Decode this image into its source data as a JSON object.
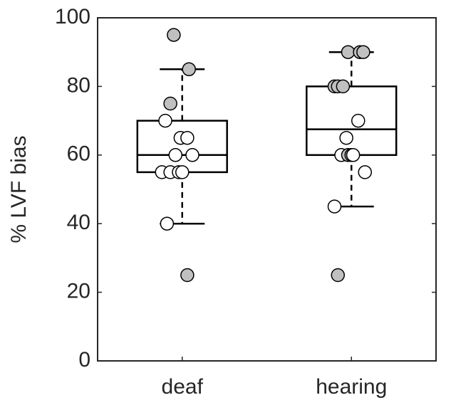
{
  "chart_data": {
    "type": "box",
    "ylabel": "% LVF bias",
    "categories": [
      "deaf",
      "hearing"
    ],
    "xlim": [
      0.5,
      2.5
    ],
    "ylim": [
      0,
      100
    ],
    "yticks": [
      0,
      20,
      40,
      60,
      80,
      100
    ],
    "box_width": 0.53,
    "groups": [
      {
        "min": 40,
        "q1": 55,
        "median": 60,
        "q3": 70,
        "max": 85,
        "points": {
          "x": [
            0.95,
            1.04,
            0.93,
            1.03,
            0.9,
            0.99,
            1.03,
            0.96,
            1.06,
            0.88,
            0.93,
            0.98,
            1.0,
            0.91
          ],
          "values": [
            95,
            85,
            75,
            25,
            70,
            65,
            65,
            60,
            60,
            55,
            55,
            55,
            55,
            40
          ],
          "colors": [
            "#c0c0c0",
            "#c0c0c0",
            "#c0c0c0",
            "#c0c0c0",
            "#ffffff",
            "#ffffff",
            "#ffffff",
            "#ffffff",
            "#ffffff",
            "#ffffff",
            "#ffffff",
            "#ffffff",
            "#ffffff",
            "#ffffff"
          ]
        }
      },
      {
        "min": 45,
        "q1": 60,
        "median": 67.5,
        "q3": 80,
        "max": 90,
        "points": {
          "x": [
            1.98,
            2.05,
            2.07,
            1.9,
            1.92,
            1.95,
            2.04,
            1.97,
            1.94,
            1.98,
            2.0,
            2.01,
            2.08,
            1.9,
            1.92
          ],
          "values": [
            90,
            90,
            90,
            80,
            80,
            80,
            70,
            65,
            60,
            60,
            60,
            60,
            55,
            45,
            25
          ],
          "colors": [
            "#c0c0c0",
            "#c0c0c0",
            "#c0c0c0",
            "#c0c0c0",
            "#c0c0c0",
            "#c0c0c0",
            "#ffffff",
            "#ffffff",
            "#ffffff",
            "#c0c0c0",
            "#c0c0c0",
            "#ffffff",
            "#ffffff",
            "#ffffff",
            "#c0c0c0"
          ]
        }
      }
    ]
  }
}
